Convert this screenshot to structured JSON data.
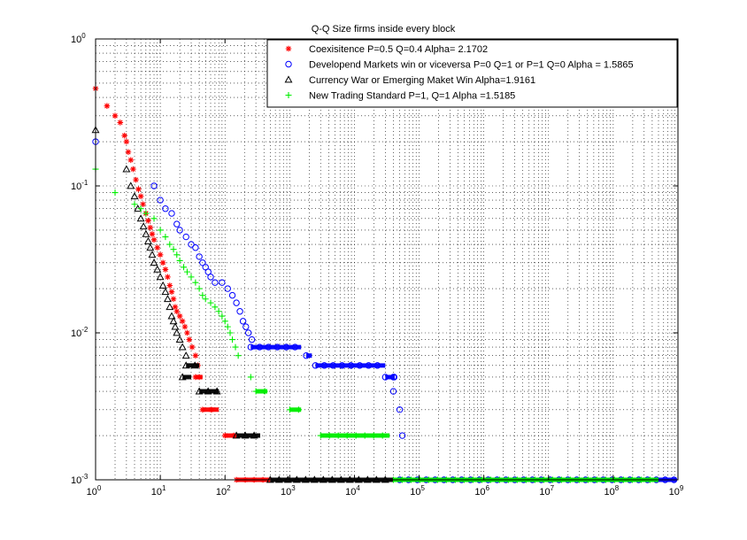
{
  "chart_data": {
    "type": "scatter",
    "title": "Q-Q Size firms inside every block",
    "xlabel": "",
    "ylabel": "",
    "x_scale": "log",
    "y_scale": "log",
    "xlim": [
      1,
      1000000000
    ],
    "ylim": [
      0.001,
      1
    ],
    "grid": true,
    "legend_position": "top-right",
    "x_ticks": [
      {
        "exp": 0,
        "label": "10",
        "sup": "0"
      },
      {
        "exp": 1,
        "label": "10",
        "sup": "1"
      },
      {
        "exp": 2,
        "label": "10",
        "sup": "2"
      },
      {
        "exp": 3,
        "label": "10",
        "sup": "3"
      },
      {
        "exp": 4,
        "label": "10",
        "sup": "4"
      },
      {
        "exp": 5,
        "label": "10",
        "sup": "5"
      },
      {
        "exp": 6,
        "label": "10",
        "sup": "6"
      },
      {
        "exp": 7,
        "label": "10",
        "sup": "7"
      },
      {
        "exp": 8,
        "label": "10",
        "sup": "8"
      },
      {
        "exp": 9,
        "label": "10",
        "sup": "9"
      }
    ],
    "y_ticks": [
      {
        "exp": -3,
        "label": "10",
        "sup": "-3"
      },
      {
        "exp": -2,
        "label": "10",
        "sup": "-2"
      },
      {
        "exp": -1,
        "label": "10",
        "sup": "-1"
      },
      {
        "exp": 0,
        "label": "10",
        "sup": "0"
      }
    ],
    "series": [
      {
        "name": "Coexisitence P=0.5 Q=0.4  Alpha= 2.1702",
        "color": "#ff0000",
        "marker": "star",
        "points": [
          [
            1,
            0.46
          ],
          [
            1.5,
            0.35
          ],
          [
            2,
            0.3
          ],
          [
            2.4,
            0.27
          ],
          [
            2.8,
            0.22
          ],
          [
            3,
            0.2
          ],
          [
            3.2,
            0.17
          ],
          [
            3.5,
            0.15
          ],
          [
            3.8,
            0.13
          ],
          [
            4.2,
            0.11
          ],
          [
            4.6,
            0.095
          ],
          [
            5,
            0.085
          ],
          [
            5.4,
            0.075
          ],
          [
            6,
            0.065
          ],
          [
            6.5,
            0.058
          ],
          [
            7,
            0.052
          ],
          [
            7.5,
            0.047
          ],
          [
            8,
            0.043
          ],
          [
            9,
            0.038
          ],
          [
            10,
            0.034
          ],
          [
            11,
            0.03
          ],
          [
            12,
            0.027
          ],
          [
            13,
            0.024
          ],
          [
            14,
            0.021
          ],
          [
            15,
            0.019
          ],
          [
            16,
            0.017
          ],
          [
            17,
            0.015
          ],
          [
            18,
            0.014
          ],
          [
            20,
            0.013
          ],
          [
            22,
            0.012
          ],
          [
            24,
            0.011
          ],
          [
            26,
            0.01
          ],
          [
            28,
            0.009
          ],
          [
            31,
            0.008
          ],
          [
            35,
            0.007
          ],
          [
            38,
            0.006
          ],
          [
            40,
            0.005
          ]
        ],
        "flats": [
          {
            "y": 0.005,
            "x0": 35,
            "x1": 45
          },
          {
            "y": 0.003,
            "x0": 45,
            "x1": 80
          },
          {
            "y": 0.002,
            "x0": 100,
            "x1": 150
          },
          {
            "y": 0.001,
            "x0": 150,
            "x1": 500
          }
        ]
      },
      {
        "name": "Developend Markets win or viceversa P=0 Q=1 or P=1 Q=0 Alpha = 1.5865",
        "color": "#0000ff",
        "marker": "circle",
        "points": [
          [
            1,
            0.2
          ],
          [
            8,
            0.1
          ],
          [
            10,
            0.08
          ],
          [
            12,
            0.07
          ],
          [
            15,
            0.065
          ],
          [
            18,
            0.055
          ],
          [
            20,
            0.05
          ],
          [
            25,
            0.045
          ],
          [
            30,
            0.04
          ],
          [
            35,
            0.038
          ],
          [
            40,
            0.033
          ],
          [
            45,
            0.03
          ],
          [
            50,
            0.028
          ],
          [
            55,
            0.026
          ],
          [
            60,
            0.024
          ],
          [
            70,
            0.022
          ],
          [
            90,
            0.022
          ],
          [
            110,
            0.02
          ],
          [
            130,
            0.018
          ],
          [
            150,
            0.016
          ],
          [
            170,
            0.014
          ],
          [
            190,
            0.012
          ],
          [
            210,
            0.011
          ],
          [
            230,
            0.01
          ],
          [
            260,
            0.009
          ],
          [
            40000,
            0.004
          ],
          [
            40000,
            0.005
          ],
          [
            50000,
            0.003
          ],
          [
            55000,
            0.002
          ]
        ],
        "flats": [
          {
            "y": 0.008,
            "x0": 250,
            "x1": 1500
          },
          {
            "y": 0.007,
            "x0": 1800,
            "x1": 2200
          },
          {
            "y": 0.006,
            "x0": 2500,
            "x1": 30000
          },
          {
            "y": 0.005,
            "x0": 30000,
            "x1": 42000
          },
          {
            "y": 0.001,
            "x0": 50000,
            "x1": 2000000000
          }
        ]
      },
      {
        "name": "Currency War or Emerging Maket Win Alpha=1.9161",
        "color": "#000000",
        "marker": "triangle",
        "points": [
          [
            1,
            0.24
          ],
          [
            3,
            0.13
          ],
          [
            3.5,
            0.1
          ],
          [
            4,
            0.085
          ],
          [
            4.5,
            0.07
          ],
          [
            5,
            0.06
          ],
          [
            5.5,
            0.053
          ],
          [
            6,
            0.047
          ],
          [
            6.5,
            0.042
          ],
          [
            7,
            0.038
          ],
          [
            7.5,
            0.034
          ],
          [
            8,
            0.03
          ],
          [
            9,
            0.027
          ],
          [
            10,
            0.024
          ],
          [
            11,
            0.021
          ],
          [
            12,
            0.019
          ],
          [
            13,
            0.017
          ],
          [
            14,
            0.015
          ],
          [
            15,
            0.013
          ],
          [
            16,
            0.012
          ],
          [
            17,
            0.011
          ],
          [
            18,
            0.01
          ],
          [
            20,
            0.009
          ],
          [
            22,
            0.008
          ],
          [
            25,
            0.007
          ]
        ],
        "flats": [
          {
            "y": 0.006,
            "x0": 25,
            "x1": 40
          },
          {
            "y": 0.005,
            "x0": 22,
            "x1": 30
          },
          {
            "y": 0.004,
            "x0": 40,
            "x1": 80
          },
          {
            "y": 0.002,
            "x0": 150,
            "x1": 350
          },
          {
            "y": 0.001,
            "x0": 500,
            "x1": 40000
          }
        ]
      },
      {
        "name": "New Trading Standard  P=1, Q=1  Alpha =1.5185",
        "color": "#00ee00",
        "marker": "plus",
        "points": [
          [
            1,
            0.13
          ],
          [
            2,
            0.09
          ],
          [
            4,
            0.075
          ],
          [
            5,
            0.07
          ],
          [
            6,
            0.065
          ],
          [
            8,
            0.06
          ],
          [
            10,
            0.05
          ],
          [
            12,
            0.045
          ],
          [
            14,
            0.04
          ],
          [
            16,
            0.037
          ],
          [
            18,
            0.034
          ],
          [
            20,
            0.031
          ],
          [
            23,
            0.028
          ],
          [
            26,
            0.026
          ],
          [
            30,
            0.024
          ],
          [
            35,
            0.022
          ],
          [
            40,
            0.02
          ],
          [
            45,
            0.018
          ],
          [
            50,
            0.017
          ],
          [
            60,
            0.016
          ],
          [
            70,
            0.015
          ],
          [
            80,
            0.014
          ],
          [
            90,
            0.013
          ],
          [
            100,
            0.012
          ],
          [
            110,
            0.011
          ],
          [
            120,
            0.01
          ],
          [
            130,
            0.009
          ],
          [
            145,
            0.008
          ],
          [
            160,
            0.007
          ],
          [
            250,
            0.005
          ]
        ],
        "flats": [
          {
            "y": 0.004,
            "x0": 300,
            "x1": 450
          },
          {
            "y": 0.003,
            "x0": 1000,
            "x1": 1500
          },
          {
            "y": 0.002,
            "x0": 3000,
            "x1": 35000
          },
          {
            "y": 0.001,
            "x0": 40000,
            "x1": 500000000
          }
        ]
      }
    ]
  }
}
